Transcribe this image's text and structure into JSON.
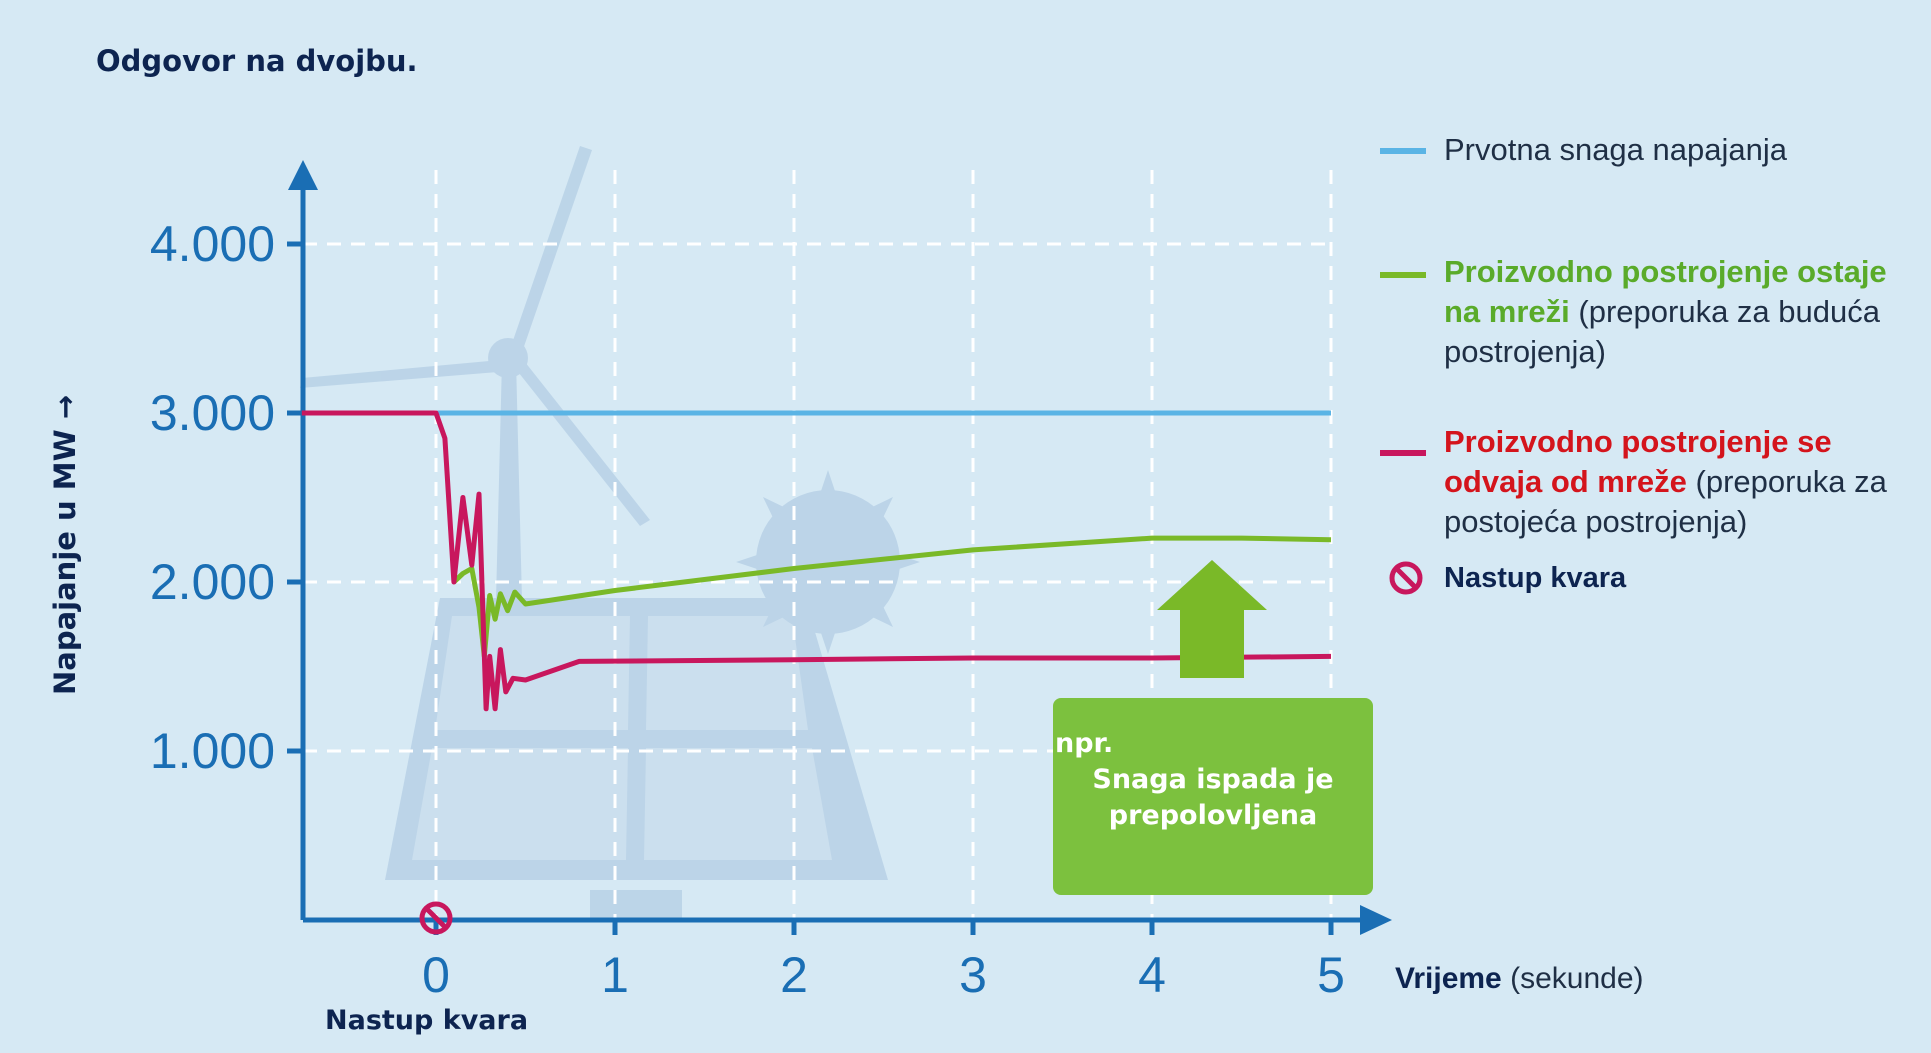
{
  "title": "Odgovor na dvojbu.",
  "chart_data": {
    "type": "line",
    "xlabel_main": "Vrijeme",
    "xlabel_unit": "(sekunde)",
    "ylabel": "Napajanje u MW →",
    "x_ticks": [
      "0",
      "1",
      "2",
      "3",
      "4",
      "5"
    ],
    "y_ticks": [
      "1.000",
      "2.000",
      "3.000",
      "4.000"
    ],
    "y_tick_values": [
      1000,
      2000,
      3000,
      4000
    ],
    "xlim": [
      -0.75,
      5.3
    ],
    "ylim": [
      0,
      4500
    ],
    "grid": true,
    "fault_label": "Nastup kvara",
    "series": [
      {
        "name": "Prvotna snaga napajanja",
        "color": "#5ab4e5",
        "x": [
          0,
          5
        ],
        "y": [
          3000,
          3000
        ]
      },
      {
        "name": "Proizvodno postrojenje ostaje na mreži",
        "color": "#7ab928",
        "x": [
          0.1,
          0.15,
          0.2,
          0.24,
          0.27,
          0.3,
          0.33,
          0.36,
          0.4,
          0.44,
          0.5,
          1.0,
          2.0,
          3.0,
          4.0,
          4.5,
          5.0
        ],
        "y": [
          2000,
          2050,
          2080,
          1850,
          1560,
          1920,
          1780,
          1930,
          1830,
          1940,
          1870,
          1950,
          2080,
          2190,
          2260,
          2260,
          2250
        ]
      },
      {
        "name": "Proizvodno postrojenje se odvaja od mreže",
        "color": "#c8175d",
        "x": [
          -0.75,
          0.0,
          0.05,
          0.1,
          0.15,
          0.2,
          0.24,
          0.28,
          0.3,
          0.33,
          0.36,
          0.39,
          0.43,
          0.5,
          0.8,
          2.0,
          3.0,
          4.0,
          5.0
        ],
        "y": [
          3000,
          3000,
          2850,
          2000,
          2500,
          2100,
          2520,
          1250,
          1560,
          1250,
          1600,
          1350,
          1430,
          1420,
          1530,
          1540,
          1550,
          1550,
          1560
        ]
      }
    ]
  },
  "legend": {
    "original": "Prvotna snaga napajanja",
    "stays_bold": "Proizvodno postrojenje ostaje na mreži",
    "stays_note": "(preporuka za buduća postrojenja)",
    "disconnects_bold": "Proizvodno postrojenje se odvaja od mreže",
    "disconnects_note": "(preporuka za postojeća postrojenja)",
    "fault": "Nastup kvara"
  },
  "callout": {
    "prefix": "npr.",
    "text": "Snaga ispada je prepolovljena"
  },
  "colors": {
    "axis": "#1a6eb4",
    "background": "#d6e9f4",
    "callout_bg": "#7cc13e",
    "fault": "#c8175d"
  }
}
